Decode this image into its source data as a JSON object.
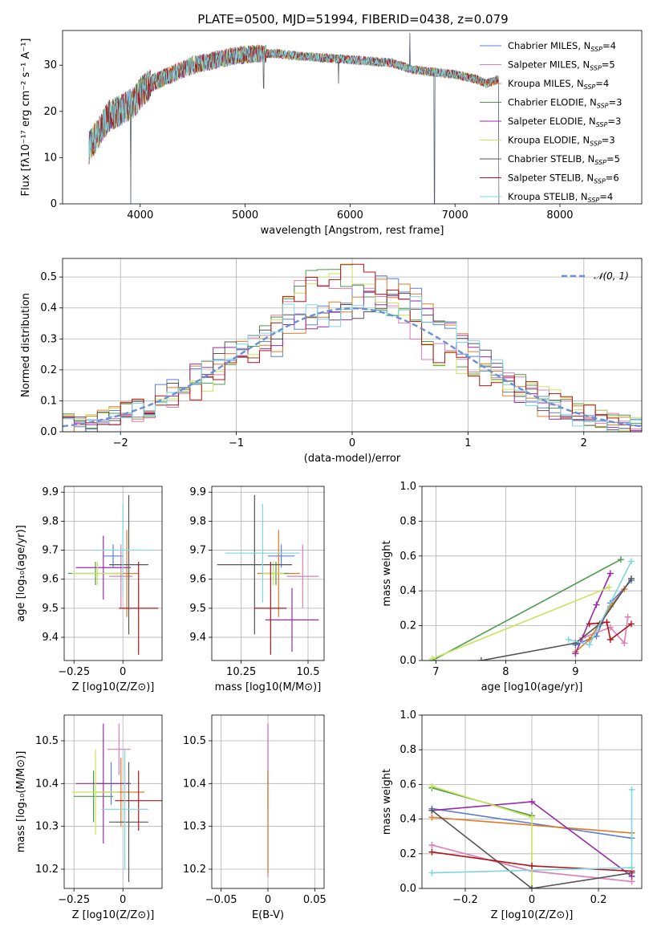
{
  "figure_title": "PLATE=0500, MJD=51994, FIBERID=0438, z=0.079",
  "models": [
    {
      "name": "Chabrier MILES",
      "nssp": "4",
      "color": "#5b7fd6"
    },
    {
      "name": "Salpeter MILES",
      "nssp": "5",
      "color": "#e07bb5"
    },
    {
      "name": "Kroupa MILES",
      "nssp": "4",
      "color": "#e07b24"
    },
    {
      "name": "Chabrier ELODIE",
      "nssp": "3",
      "color": "#4f9a4f"
    },
    {
      "name": "Salpeter ELODIE",
      "nssp": "3",
      "color": "#9a2aa8"
    },
    {
      "name": "Kroupa ELODIE",
      "nssp": "3",
      "color": "#c9e35a"
    },
    {
      "name": "Chabrier STELIB",
      "nssp": "5",
      "color": "#555555"
    },
    {
      "name": "Salpeter STELIB",
      "nssp": "6",
      "color": "#b0141a"
    },
    {
      "name": "Kroupa STELIB",
      "nssp": "4",
      "color": "#7dd6e0"
    }
  ],
  "chart_data": [
    {
      "id": "spectrum",
      "type": "line",
      "xlabel": "wavelength [Angstrom, rest frame]",
      "ylabel": "Flux [f_λ 10^-17 erg cm^-2 s^-1 A^-1]",
      "xlim": [
        3260,
        8780
      ],
      "ylim": [
        0,
        37.5
      ],
      "xticks": [
        4000,
        5000,
        6000,
        7000,
        8000
      ],
      "yticks": [
        0,
        10,
        20,
        30
      ],
      "grid": false,
      "legend": "top-right",
      "continuum": [
        [
          3510,
          12
        ],
        [
          3700,
          19
        ],
        [
          3800,
          20
        ],
        [
          3950,
          22
        ],
        [
          4000,
          24
        ],
        [
          4100,
          26
        ],
        [
          4300,
          28
        ],
        [
          4500,
          30
        ],
        [
          4700,
          31
        ],
        [
          4900,
          32
        ],
        [
          5100,
          32.5
        ],
        [
          5300,
          32.5
        ],
        [
          5500,
          32
        ],
        [
          5800,
          31.5
        ],
        [
          6100,
          31
        ],
        [
          6400,
          30.5
        ],
        [
          6600,
          29
        ],
        [
          6800,
          28.5
        ],
        [
          7000,
          28
        ],
        [
          7200,
          27
        ],
        [
          7300,
          26
        ],
        [
          7420,
          27
        ]
      ],
      "spikes": [
        [
          3910,
          0
        ],
        [
          6805,
          0
        ],
        [
          7420,
          0
        ],
        [
          6570,
          37
        ],
        [
          5890,
          26
        ],
        [
          5175,
          25
        ]
      ]
    },
    {
      "id": "residuals",
      "type": "histogram",
      "xlabel": "(data-model)/error",
      "ylabel": "Normed distribution",
      "xlim": [
        -2.5,
        2.5
      ],
      "ylim": [
        0,
        0.56
      ],
      "xticks": [
        -2,
        -1,
        0,
        1,
        2
      ],
      "yticks": [
        0.0,
        0.1,
        0.2,
        0.3,
        0.4,
        0.5
      ],
      "grid": true,
      "legend": "top-right",
      "reference_curve": "N(0,1)",
      "bin_width": 0.1
    },
    {
      "id": "age_vs_Z",
      "type": "scatter",
      "xlabel": "Z [log10(Z/Z⊙)]",
      "ylabel": "age [log10(age/yr)]",
      "xlim": [
        -0.3,
        0.2
      ],
      "ylim": [
        9.32,
        9.92
      ],
      "xticks": [
        -0.25,
        0.0
      ],
      "yticks": [
        9.4,
        9.5,
        9.6,
        9.7,
        9.8,
        9.9
      ],
      "grid": true,
      "points": [
        {
          "x": -0.05,
          "xerr": 0.05,
          "y": 9.68,
          "yerr": 0.04
        },
        {
          "x": -0.01,
          "xerr": 0.06,
          "y": 9.61,
          "yerr": 0.11
        },
        {
          "x": 0.02,
          "xerr": 0.06,
          "y": 9.62,
          "yerr": 0.15
        },
        {
          "x": -0.14,
          "xerr": 0.14,
          "y": 9.62,
          "yerr": 0.04
        },
        {
          "x": -0.1,
          "xerr": 0.14,
          "y": 9.64,
          "yerr": 0.11
        },
        {
          "x": -0.13,
          "xerr": 0.13,
          "y": 9.62,
          "yerr": 0.04
        },
        {
          "x": 0.03,
          "xerr": 0.1,
          "y": 9.65,
          "yerr": 0.24
        },
        {
          "x": 0.08,
          "xerr": 0.1,
          "y": 9.5,
          "yerr": 0.16
        },
        {
          "x": 0.0,
          "xerr": 0.16,
          "y": 9.7,
          "yerr": 0.16
        }
      ]
    },
    {
      "id": "age_vs_mass",
      "type": "scatter",
      "xlabel": "mass [log10(M/M⊙)]",
      "ylabel": "",
      "xlim": [
        10.14,
        10.56
      ],
      "ylim": [
        9.32,
        9.92
      ],
      "xticks": [
        10.25,
        10.5
      ],
      "yticks": [
        9.4,
        9.5,
        9.6,
        9.7,
        9.8,
        9.9
      ],
      "grid": true,
      "points": [
        {
          "x": 10.4,
          "xerr": 0.05,
          "y": 9.68,
          "yerr": 0.04
        },
        {
          "x": 10.48,
          "xerr": 0.06,
          "y": 9.61,
          "yerr": 0.11
        },
        {
          "x": 10.39,
          "xerr": 0.08,
          "y": 9.62,
          "yerr": 0.15
        },
        {
          "x": 10.38,
          "xerr": 0.05,
          "y": 9.62,
          "yerr": 0.04
        },
        {
          "x": 10.44,
          "xerr": 0.1,
          "y": 9.46,
          "yerr": 0.11
        },
        {
          "x": 10.37,
          "xerr": 0.04,
          "y": 9.62,
          "yerr": 0.04
        },
        {
          "x": 10.3,
          "xerr": 0.14,
          "y": 9.65,
          "yerr": 0.24
        },
        {
          "x": 10.36,
          "xerr": 0.06,
          "y": 9.5,
          "yerr": 0.16
        },
        {
          "x": 10.33,
          "xerr": 0.14,
          "y": 9.69,
          "yerr": 0.17
        }
      ]
    },
    {
      "id": "weight_vs_age",
      "type": "line",
      "xlabel": "age [log10(age/yr)]",
      "ylabel": "mass weight",
      "xlim": [
        6.8,
        9.95
      ],
      "ylim": [
        0,
        1.0
      ],
      "xticks": [
        7,
        8,
        9
      ],
      "yticks": [
        0.0,
        0.2,
        0.4,
        0.6,
        0.8,
        1.0
      ],
      "grid": true,
      "series": [
        {
          "x": [
            9.0,
            9.3,
            9.5,
            9.8
          ],
          "y": [
            0.09,
            0.14,
            0.33,
            0.46
          ]
        },
        {
          "x": [
            9.1,
            9.5,
            9.7,
            9.75
          ],
          "y": [
            0.13,
            0.19,
            0.1,
            0.25
          ]
        },
        {
          "x": [
            9.0,
            9.2,
            9.5,
            9.7
          ],
          "y": [
            0.05,
            0.12,
            0.31,
            0.41
          ]
        },
        {
          "x": [
            6.95,
            9.65
          ],
          "y": [
            0.0,
            0.58
          ]
        },
        {
          "x": [
            9.0,
            9.3,
            9.5
          ],
          "y": [
            0.04,
            0.32,
            0.5
          ]
        },
        {
          "x": [
            6.95,
            9.48
          ],
          "y": [
            0.01,
            0.42
          ]
        },
        {
          "x": [
            7.65,
            9.0,
            9.35,
            9.8
          ],
          "y": [
            0.0,
            0.1,
            0.21,
            0.47
          ]
        },
        {
          "x": [
            9.2,
            9.45,
            9.5,
            9.8
          ],
          "y": [
            0.21,
            0.22,
            0.12,
            0.21
          ]
        },
        {
          "x": [
            8.9,
            9.2,
            9.8
          ],
          "y": [
            0.12,
            0.09,
            0.57
          ]
        }
      ]
    },
    {
      "id": "mass_vs_Z",
      "type": "scatter",
      "xlabel": "Z [log10(Z/Z⊙)]",
      "ylabel": "mass [log10(M/M⊙)]",
      "xlim": [
        -0.3,
        0.2
      ],
      "ylim": [
        10.155,
        10.56
      ],
      "xticks": [
        -0.25,
        0.0
      ],
      "yticks": [
        10.2,
        10.3,
        10.4,
        10.5
      ],
      "grid": true,
      "points": [
        {
          "x": -0.06,
          "xerr": 0.1,
          "y": 10.4,
          "yerr": 0.05
        },
        {
          "x": -0.02,
          "xerr": 0.06,
          "y": 10.48,
          "yerr": 0.06
        },
        {
          "x": -0.01,
          "xerr": 0.12,
          "y": 10.38,
          "yerr": 0.08
        },
        {
          "x": -0.15,
          "xerr": 0.1,
          "y": 10.37,
          "yerr": 0.06
        },
        {
          "x": -0.1,
          "xerr": 0.14,
          "y": 10.4,
          "yerr": 0.14
        },
        {
          "x": -0.14,
          "xerr": 0.12,
          "y": 10.38,
          "yerr": 0.1
        },
        {
          "x": 0.03,
          "xerr": 0.1,
          "y": 10.31,
          "yerr": 0.14
        },
        {
          "x": 0.08,
          "xerr": 0.12,
          "y": 10.36,
          "yerr": 0.07
        },
        {
          "x": 0.01,
          "xerr": 0.12,
          "y": 10.34,
          "yerr": 0.14
        }
      ]
    },
    {
      "id": "mass_vs_EBV",
      "type": "scatter",
      "xlabel": "E(B-V)",
      "ylabel": "",
      "xlim": [
        -0.06,
        0.06
      ],
      "ylim": [
        10.155,
        10.56
      ],
      "xticks": [
        -0.05,
        0.0,
        0.05
      ],
      "yticks": [
        10.2,
        10.3,
        10.4,
        10.5
      ],
      "grid": true,
      "points": [
        {
          "x": 0.0,
          "xerr": 0.0,
          "y": 10.44,
          "yerr": 0.1
        },
        {
          "x": 0.0,
          "xerr": 0.0,
          "y": 10.36,
          "yerr": 0.18
        },
        {
          "x": 0.0,
          "xerr": 0.0,
          "y": 10.31,
          "yerr": 0.12
        }
      ]
    },
    {
      "id": "weight_vs_Z",
      "type": "line",
      "xlabel": "Z [log10(Z/Z⊙)]",
      "ylabel": "mass weight",
      "xlim": [
        -0.33,
        0.33
      ],
      "ylim": [
        0,
        1.0
      ],
      "xticks": [
        -0.2,
        0.0,
        0.2
      ],
      "yticks": [
        0.0,
        0.2,
        0.4,
        0.6,
        0.8,
        1.0
      ],
      "grid": true,
      "series": [
        {
          "x": [
            -0.3,
            0.3
          ],
          "y": [
            0.46,
            0.29
          ]
        },
        {
          "x": [
            -0.3,
            0.0,
            0.3
          ],
          "y": [
            0.25,
            0.1,
            0.04
          ]
        },
        {
          "x": [
            -0.3,
            0.3
          ],
          "y": [
            0.41,
            0.32
          ]
        },
        {
          "x": [
            -0.3,
            0.0
          ],
          "y": [
            0.58,
            0.42
          ]
        },
        {
          "x": [
            -0.3,
            0.0,
            0.3
          ],
          "y": [
            0.45,
            0.5,
            0.07
          ]
        },
        {
          "x": [
            -0.3,
            0.0,
            0.0
          ],
          "y": [
            0.59,
            0.41,
            0.0
          ]
        },
        {
          "x": [
            -0.3,
            0.0,
            0.3
          ],
          "y": [
            0.45,
            0.0,
            0.09
          ]
        },
        {
          "x": [
            -0.3,
            0.0,
            0.3
          ],
          "y": [
            0.21,
            0.13,
            0.1
          ]
        },
        {
          "x": [
            -0.3,
            0.3,
            0.3
          ],
          "y": [
            0.09,
            0.12,
            0.57
          ]
        }
      ]
    }
  ]
}
